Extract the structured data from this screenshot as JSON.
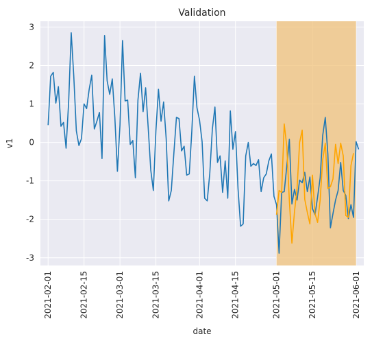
{
  "chart_data": {
    "type": "line",
    "title": "Validation",
    "xlabel": "date",
    "ylabel": "v1",
    "grid": true,
    "ylim": [
      -3.2,
      3.15
    ],
    "xlim": [
      "2021-01-29",
      "2021-06-04"
    ],
    "y_ticks": [
      3,
      2,
      1,
      0,
      -1,
      -2,
      -3
    ],
    "x_ticks": [
      "2021-02-01",
      "2021-02-15",
      "2021-03-01",
      "2021-03-15",
      "2021-04-01",
      "2021-04-15",
      "2021-05-01",
      "2021-05-15",
      "2021-06-01"
    ],
    "highlight_span": {
      "start": "2021-05-01",
      "end": "2021-06-01",
      "color": "#f0c27a"
    },
    "series": [
      {
        "color": "#1f77b4",
        "start": "2021-02-01",
        "values": [
          0.45,
          1.72,
          1.82,
          1.02,
          1.45,
          0.42,
          0.52,
          -0.15,
          1.05,
          2.85,
          1.72,
          0.3,
          -0.08,
          0.1,
          1.0,
          0.88,
          1.38,
          1.75,
          0.35,
          0.55,
          0.78,
          -0.42,
          2.78,
          1.6,
          1.25,
          1.65,
          0.65,
          -0.75,
          0.45,
          2.65,
          1.08,
          1.1,
          -0.05,
          0.05,
          -0.92,
          1.1,
          1.8,
          0.8,
          1.42,
          0.38,
          -0.72,
          -1.25,
          0.3,
          1.38,
          0.55,
          1.05,
          0.1,
          -1.52,
          -1.25,
          -0.28,
          0.65,
          0.62,
          -0.22,
          -0.1,
          -0.85,
          -0.82,
          0.3,
          1.72,
          0.9,
          0.58,
          0.02,
          -1.45,
          -1.52,
          -0.8,
          0.35,
          0.92,
          -0.52,
          -0.35,
          -1.3,
          -0.48,
          -1.45,
          0.82,
          -0.18,
          0.28,
          -1.2,
          -2.18,
          -2.12,
          -0.35,
          0.0,
          -0.62,
          -0.55,
          -0.6,
          -0.45,
          -1.28,
          -0.92,
          -0.82,
          -0.48,
          -0.3,
          -1.4,
          -1.62,
          -2.88,
          -1.3,
          -1.28,
          -0.62,
          0.08,
          -1.6,
          -1.22,
          -1.5,
          -0.98,
          -1.05,
          -0.78,
          -1.28,
          -0.9,
          -1.72,
          -1.88,
          -1.42,
          -0.92,
          0.18,
          0.65,
          -0.3,
          -2.22,
          -1.85,
          -1.5,
          -1.25,
          -0.52,
          -1.25,
          -1.38,
          -1.98,
          -1.62,
          -1.95,
          0.02,
          -0.18
        ]
      },
      {
        "color": "#ffa500",
        "start": "2021-05-01",
        "values": [
          -1.88,
          -1.25,
          -1.3,
          0.48,
          -0.1,
          -1.52,
          -2.62,
          -1.8,
          -1.2,
          0.0,
          0.32,
          -1.48,
          -1.82,
          -2.12,
          -0.85,
          -1.85,
          -2.08,
          -1.5,
          -0.45,
          -0.02,
          -1.2,
          -1.15,
          -0.95,
          -0.05,
          -0.55,
          -0.02,
          -0.35,
          -1.9,
          -1.95,
          -0.6,
          -0.28
        ]
      }
    ]
  }
}
